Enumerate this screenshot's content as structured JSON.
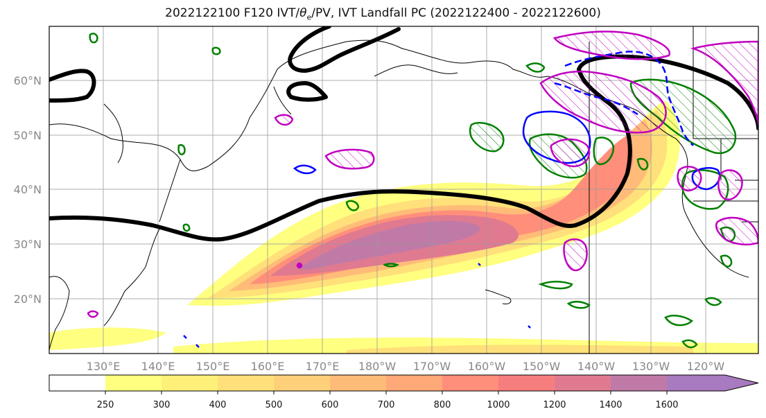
{
  "title": {
    "prefix": "2022122100 F120 IVT/",
    "theta": "θ",
    "theta_sub": "e",
    "suffix": "/PV, IVT Landfall PC (2022122400 - 2022122600)"
  },
  "map": {
    "lat_labels": [
      "60°N",
      "50°N",
      "40°N",
      "30°N",
      "20°N"
    ],
    "lon_labels": [
      "130°E",
      "140°E",
      "150°E",
      "160°E",
      "170°E",
      "180°W",
      "170°W",
      "160°W",
      "150°W",
      "140°W",
      "130°W",
      "120°W"
    ]
  },
  "colorbar": {
    "levels": [
      "250",
      "300",
      "400",
      "500",
      "600",
      "700",
      "800",
      "1000",
      "1200",
      "1400",
      "1600"
    ],
    "colors": [
      "#ffff80",
      "#fff07a",
      "#ffe07a",
      "#ffd07a",
      "#ffbc78",
      "#ffa878",
      "#ff8e7a",
      "#f67e7e",
      "#e07a90",
      "#c07aa8",
      "#a87ac0"
    ]
  },
  "colors": {
    "contour_black": "#000000",
    "contour_green": "#008000",
    "contour_blue": "#0000ff",
    "contour_magenta": "#c000c0"
  }
}
